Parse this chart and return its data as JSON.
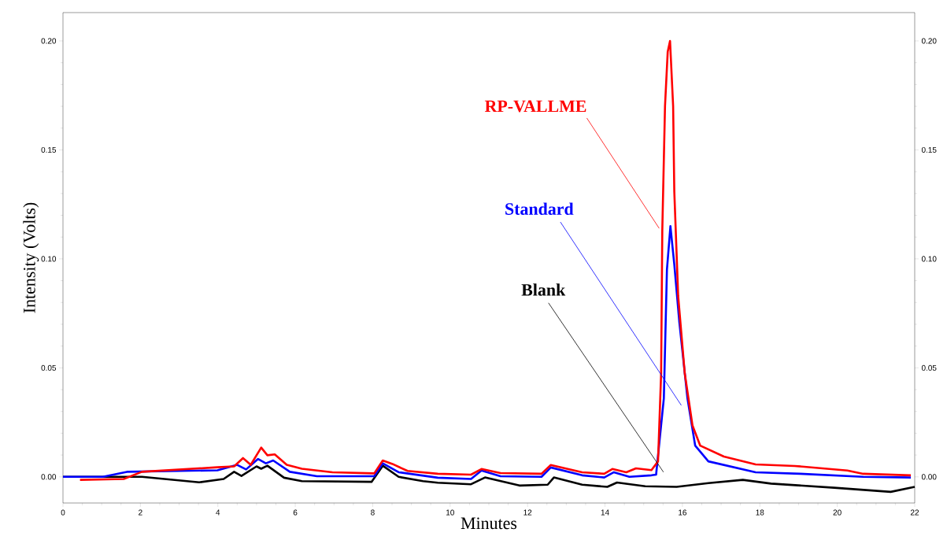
{
  "chart_data": {
    "type": "line",
    "xlabel": "Minutes",
    "ylabel": "Intensity (Volts)",
    "xlim": [
      0,
      22
    ],
    "xticks": [
      0,
      2,
      4,
      6,
      8,
      10,
      12,
      14,
      16,
      18,
      20,
      22
    ],
    "ylim": [
      -0.012,
      0.213
    ],
    "yticks": [
      {
        "value": 0,
        "label": "0.00"
      },
      {
        "value": 0.05,
        "label": "0.05"
      },
      {
        "value": 0.1,
        "label": "0.10"
      },
      {
        "value": 0.15,
        "label": "0.15"
      },
      {
        "value": 0.2,
        "label": "0.20"
      }
    ],
    "y2lim": [
      -0.012,
      0.213
    ],
    "y2ticks": [
      {
        "value": 0,
        "label": "0.00"
      },
      {
        "value": 0.05,
        "label": "0.05"
      },
      {
        "value": 0.1,
        "label": "0.10"
      },
      {
        "value": 0.15,
        "label": "0.15"
      },
      {
        "value": 0.2,
        "label": "0.20"
      }
    ],
    "series": [
      {
        "name": "Blank",
        "color": "#000000",
        "x": [
          0,
          2.04,
          3.52,
          4.15,
          4.42,
          4.61,
          5.0,
          5.12,
          5.28,
          5.71,
          6.17,
          7.97,
          8.26,
          8.67,
          9.3,
          9.68,
          10.54,
          10.9,
          11.79,
          12.52,
          12.68,
          13.41,
          14.06,
          14.31,
          15.04,
          15.85,
          16.67,
          17.56,
          18.29,
          19.92,
          21.38,
          22.0
        ],
        "values": [
          0,
          0,
          -0.0025,
          -0.001,
          0.0023,
          0.0004,
          0.0048,
          0.0037,
          0.0051,
          -0.0004,
          -0.002,
          -0.0023,
          0.0051,
          0,
          -0.002,
          -0.0027,
          -0.0034,
          -0.0003,
          -0.004,
          -0.0036,
          -0.0003,
          -0.0036,
          -0.0046,
          -0.0026,
          -0.0043,
          -0.0046,
          -0.0029,
          -0.0014,
          -0.0031,
          -0.005,
          -0.0069,
          -0.0046
        ]
      },
      {
        "name": "Standard",
        "color": "#0000ff",
        "x": [
          0,
          1.03,
          1.65,
          3.99,
          4.5,
          4.73,
          5.04,
          5.24,
          5.43,
          5.86,
          6.56,
          8.04,
          8.26,
          8.67,
          9.68,
          10.54,
          10.81,
          11.3,
          12.36,
          12.6,
          13.41,
          13.98,
          14.23,
          14.63,
          15.2,
          15.32,
          15.52,
          15.6,
          15.69,
          15.79,
          15.92,
          16.13,
          16.33,
          16.67,
          17.89,
          19.04,
          20.67,
          21.9
        ],
        "values": [
          0,
          0,
          0.0023,
          0.003,
          0.0055,
          0.0034,
          0.0082,
          0.0062,
          0.0075,
          0.0023,
          0.0003,
          0.0003,
          0.0062,
          0.0021,
          -0.0004,
          -0.001,
          0.0029,
          0.0003,
          0,
          0.0043,
          0.0007,
          -0.0003,
          0.0021,
          0,
          0.0007,
          0.001,
          0.036,
          0.095,
          0.115,
          0.0975,
          0.071,
          0.036,
          0.0143,
          0.0071,
          0.0021,
          0.0014,
          0,
          -0.0003
        ]
      },
      {
        "name": "RP-VALLME",
        "color": "#ff0000",
        "x": [
          0.44,
          1.57,
          2.04,
          3.99,
          4.42,
          4.65,
          4.85,
          5.12,
          5.28,
          5.47,
          5.78,
          6.17,
          6.96,
          8.04,
          8.26,
          8.51,
          8.9,
          9.68,
          10.54,
          10.81,
          11.3,
          12.36,
          12.6,
          13.41,
          13.98,
          14.19,
          14.55,
          14.8,
          15.2,
          15.37,
          15.45,
          15.48,
          15.55,
          15.62,
          15.68,
          15.76,
          15.79,
          15.89,
          16.06,
          16.26,
          16.46,
          17.07,
          17.89,
          18.9,
          20.26,
          20.67,
          21.9
        ],
        "values": [
          -0.0014,
          -0.001,
          0.0023,
          0.0044,
          0.0048,
          0.0086,
          0.0055,
          0.0134,
          0.0099,
          0.0103,
          0.0055,
          0.0037,
          0.0021,
          0.0016,
          0.0075,
          0.0059,
          0.0027,
          0.0014,
          0.001,
          0.0036,
          0.0017,
          0.0014,
          0.0054,
          0.0021,
          0.0014,
          0.0036,
          0.0021,
          0.0039,
          0.0031,
          0.0071,
          0.0475,
          0.113,
          0.17,
          0.195,
          0.2,
          0.17,
          0.131,
          0.083,
          0.0475,
          0.0236,
          0.0143,
          0.0093,
          0.0057,
          0.005,
          0.0029,
          0.0014,
          0.0007
        ]
      }
    ]
  }
}
